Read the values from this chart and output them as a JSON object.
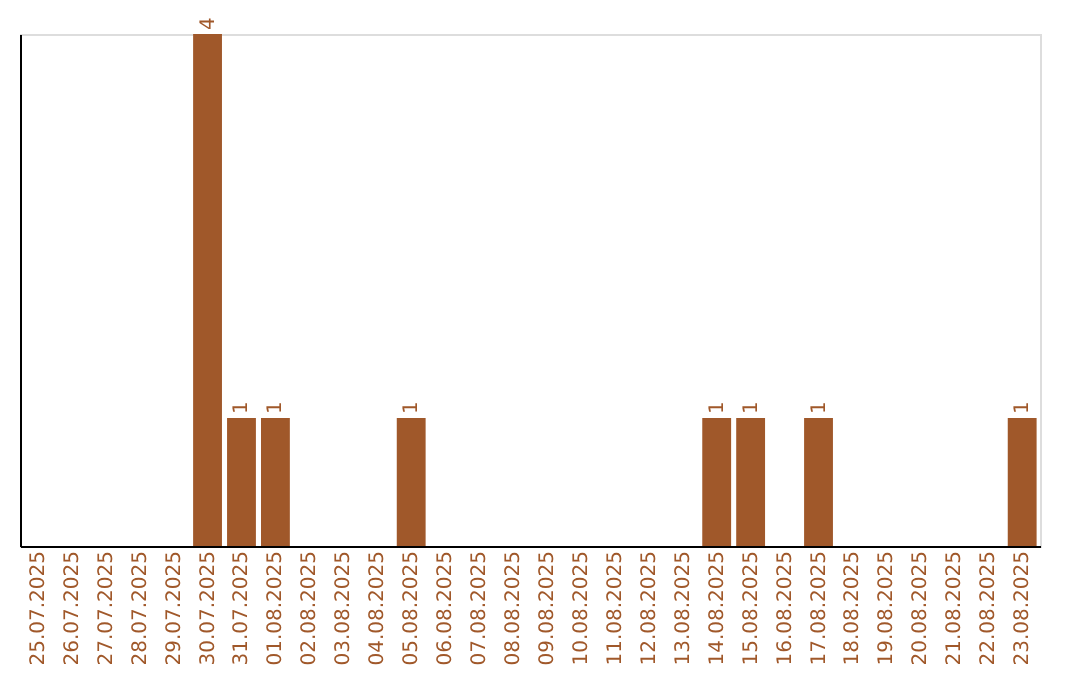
{
  "chart_data": {
    "type": "bar",
    "categories": [
      "25.07.2025",
      "26.07.2025",
      "27.07.2025",
      "28.07.2025",
      "29.07.2025",
      "30.07.2025",
      "31.07.2025",
      "01.08.2025",
      "02.08.2025",
      "03.08.2025",
      "04.08.2025",
      "05.08.2025",
      "06.08.2025",
      "07.08.2025",
      "08.08.2025",
      "09.08.2025",
      "10.08.2025",
      "11.08.2025",
      "12.08.2025",
      "13.08.2025",
      "14.08.2025",
      "15.08.2025",
      "16.08.2025",
      "17.08.2025",
      "18.08.2025",
      "19.08.2025",
      "20.08.2025",
      "21.08.2025",
      "22.08.2025",
      "23.08.2025"
    ],
    "values": [
      0,
      0,
      0,
      0,
      0,
      4,
      1,
      1,
      0,
      0,
      0,
      1,
      0,
      0,
      0,
      0,
      0,
      0,
      0,
      0,
      1,
      1,
      0,
      1,
      0,
      0,
      0,
      0,
      0,
      1
    ],
    "value_labels": [
      null,
      null,
      null,
      null,
      null,
      "4",
      "1",
      "1",
      null,
      null,
      null,
      "1",
      null,
      null,
      null,
      null,
      null,
      null,
      null,
      null,
      "1",
      "1",
      null,
      "1",
      null,
      null,
      null,
      null,
      null,
      "1"
    ],
    "color": "#a0582a",
    "grid": false,
    "tick_labels": "x"
  }
}
